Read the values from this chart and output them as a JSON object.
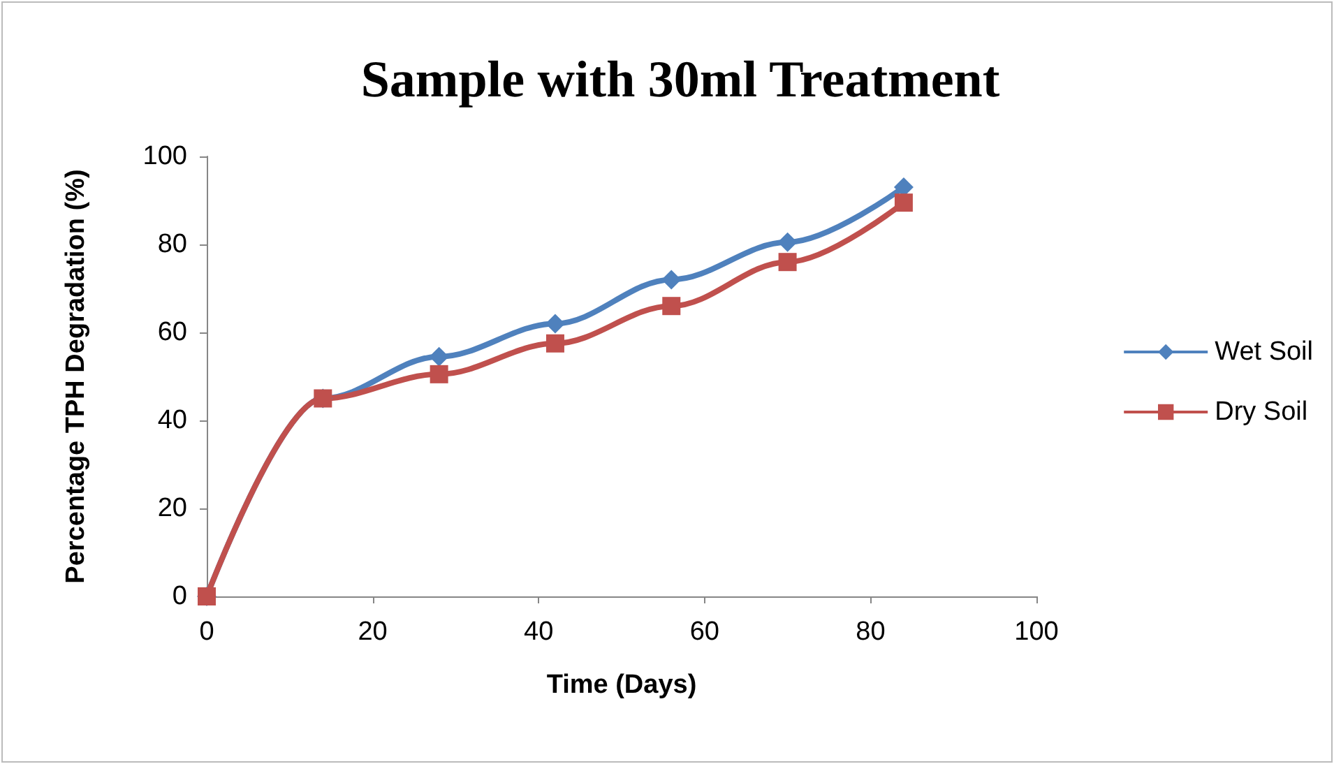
{
  "chart_data": {
    "type": "line",
    "title": "Sample with 30ml Treatment",
    "xlabel": "Time (Days)",
    "ylabel": "Percentage TPH Degradation (%)",
    "x": [
      0,
      14,
      28,
      42,
      56,
      70,
      84
    ],
    "series": [
      {
        "name": "Wet Soil",
        "color": "#4f81bd",
        "marker": "diamond",
        "values": [
          0,
          45,
          54.5,
          62,
          72,
          80.5,
          93
        ]
      },
      {
        "name": "Dry Soil",
        "color": "#c0504d",
        "marker": "square",
        "values": [
          0,
          45,
          50.5,
          57.5,
          66,
          76,
          89.5
        ]
      }
    ],
    "xlim": [
      0,
      100
    ],
    "xticks": [
      0,
      20,
      40,
      60,
      80,
      100
    ],
    "ylim": [
      0,
      100
    ],
    "yticks": [
      0,
      20,
      40,
      60,
      80,
      100
    ],
    "grid": false,
    "legend": "right"
  }
}
